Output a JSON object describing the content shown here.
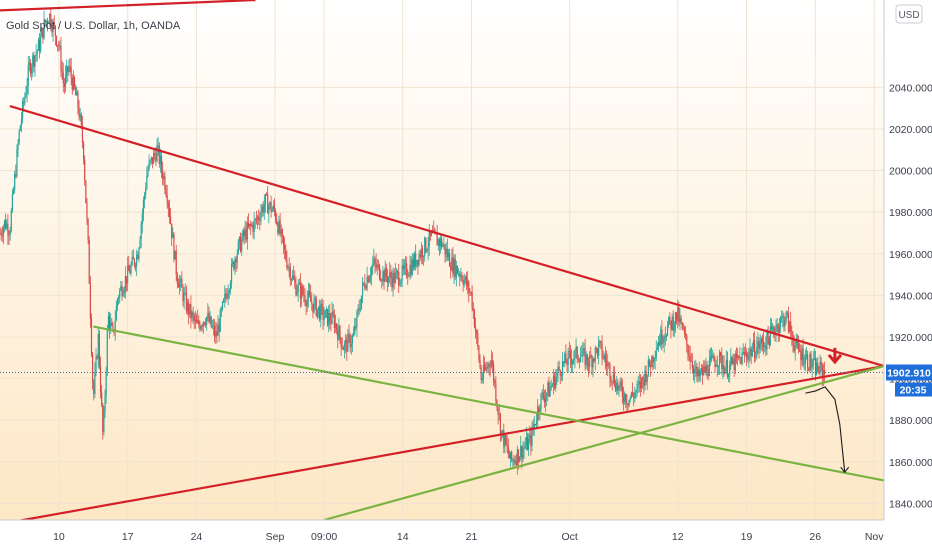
{
  "header": {
    "symbol_title": "Gold Spot / U.S. Dollar, 1h, OANDA",
    "currency_label": "USD"
  },
  "price_badge": {
    "price": "1902.910",
    "countdown": "20:35"
  },
  "colors": {
    "bg_top": "#ffffff",
    "bg_bottom": "#fde9c8",
    "up_candle": "#26a69a",
    "down_candle": "#d94a4a",
    "resistance": "#d42027",
    "support": "#7bb342",
    "badge": "#1e6fd9"
  },
  "chart_data": {
    "type": "candlestick",
    "title": "Gold Spot / U.S. Dollar, 1h, OANDA",
    "ylim": [
      1832,
      2082
    ],
    "y_ticks": [
      "1840.000",
      "1860.000",
      "1880.000",
      "1900.000",
      "1920.000",
      "1940.000",
      "1960.000",
      "1980.000",
      "2000.000",
      "2020.000",
      "2040.000"
    ],
    "x_ticks": [
      {
        "label": "10",
        "t": 10
      },
      {
        "label": "17",
        "t": 17
      },
      {
        "label": "24",
        "t": 24
      },
      {
        "label": "Sep",
        "t": 32
      },
      {
        "label": "09:00",
        "t": 37
      },
      {
        "label": "14",
        "t": 45
      },
      {
        "label": "21",
        "t": 52
      },
      {
        "label": "Oct",
        "t": 62
      },
      {
        "label": "12",
        "t": 73
      },
      {
        "label": "19",
        "t": 80
      },
      {
        "label": "26",
        "t": 87
      },
      {
        "label": "Nov",
        "t": 93
      }
    ],
    "xlim": [
      4,
      94
    ],
    "price_path": [
      [
        4,
        1970
      ],
      [
        4.5,
        1975
      ],
      [
        5,
        1972
      ],
      [
        6,
        2020
      ],
      [
        7,
        2050
      ],
      [
        8,
        2060
      ],
      [
        8.5,
        2070
      ],
      [
        9,
        2075
      ],
      [
        9.5,
        2068
      ],
      [
        10,
        2060
      ],
      [
        10.5,
        2040
      ],
      [
        11,
        2050
      ],
      [
        11.5,
        2040
      ],
      [
        12,
        2030
      ],
      [
        12.5,
        2010
      ],
      [
        13,
        1960
      ],
      [
        13.5,
        1890
      ],
      [
        14,
        1920
      ],
      [
        14.5,
        1870
      ],
      [
        15,
        1930
      ],
      [
        15.5,
        1920
      ],
      [
        16,
        1940
      ],
      [
        17,
        1950
      ],
      [
        18,
        1960
      ],
      [
        19,
        2000
      ],
      [
        20,
        2010
      ],
      [
        21,
        1990
      ],
      [
        22,
        1950
      ],
      [
        23,
        1935
      ],
      [
        24,
        1925
      ],
      [
        25,
        1930
      ],
      [
        26,
        1920
      ],
      [
        27,
        1940
      ],
      [
        28,
        1960
      ],
      [
        29,
        1970
      ],
      [
        30,
        1975
      ],
      [
        31,
        1985
      ],
      [
        32,
        1980
      ],
      [
        33,
        1960
      ],
      [
        34,
        1945
      ],
      [
        35,
        1940
      ],
      [
        36,
        1935
      ],
      [
        37,
        1930
      ],
      [
        38,
        1928
      ],
      [
        39,
        1915
      ],
      [
        40,
        1920
      ],
      [
        41,
        1945
      ],
      [
        42,
        1955
      ],
      [
        43,
        1950
      ],
      [
        44,
        1948
      ],
      [
        45,
        1950
      ],
      [
        46,
        1955
      ],
      [
        47,
        1962
      ],
      [
        48,
        1968
      ],
      [
        49,
        1965
      ],
      [
        50,
        1955
      ],
      [
        51,
        1950
      ],
      [
        52,
        1940
      ],
      [
        53,
        1900
      ],
      [
        54,
        1910
      ],
      [
        55,
        1875
      ],
      [
        56,
        1860
      ],
      [
        57,
        1865
      ],
      [
        58,
        1870
      ],
      [
        59,
        1890
      ],
      [
        60,
        1895
      ],
      [
        61,
        1905
      ],
      [
        62,
        1910
      ],
      [
        63,
        1912
      ],
      [
        64,
        1908
      ],
      [
        65,
        1915
      ],
      [
        66,
        1905
      ],
      [
        67,
        1895
      ],
      [
        68,
        1890
      ],
      [
        69,
        1895
      ],
      [
        70,
        1905
      ],
      [
        71,
        1918
      ],
      [
        72,
        1925
      ],
      [
        73,
        1930
      ],
      [
        74,
        1915
      ],
      [
        75,
        1900
      ],
      [
        76,
        1905
      ],
      [
        77,
        1910
      ],
      [
        78,
        1905
      ],
      [
        79,
        1908
      ],
      [
        80,
        1912
      ],
      [
        81,
        1915
      ],
      [
        82,
        1918
      ],
      [
        83,
        1925
      ],
      [
        84,
        1930
      ],
      [
        85,
        1915
      ],
      [
        86,
        1910
      ],
      [
        87,
        1905
      ],
      [
        88,
        1903
      ]
    ],
    "trendlines": [
      {
        "role": "resistance",
        "color": "#d42027",
        "points": [
          [
            5,
            2031
          ],
          [
            94,
            1906
          ]
        ]
      },
      {
        "role": "resistance",
        "color": "#d42027",
        "points": [
          [
            4,
            2077
          ],
          [
            30,
            2082
          ]
        ]
      },
      {
        "role": "support",
        "color": "#d42027",
        "points": [
          [
            4,
            1830
          ],
          [
            94,
            1906
          ]
        ]
      },
      {
        "role": "support",
        "color": "#7bb342",
        "points": [
          [
            13.5,
            1925
          ],
          [
            94,
            1851
          ]
        ]
      },
      {
        "role": "support",
        "color": "#7bb342",
        "points": [
          [
            37,
            1832
          ],
          [
            94,
            1906
          ]
        ]
      }
    ],
    "current_price": 1902.91,
    "projection_path": [
      [
        86,
        1893
      ],
      [
        87,
        1894
      ],
      [
        88,
        1896
      ],
      [
        89,
        1890
      ],
      [
        89.5,
        1878
      ],
      [
        90,
        1855
      ]
    ],
    "arrow_down_marker": {
      "t": 89,
      "price": 1908
    }
  }
}
